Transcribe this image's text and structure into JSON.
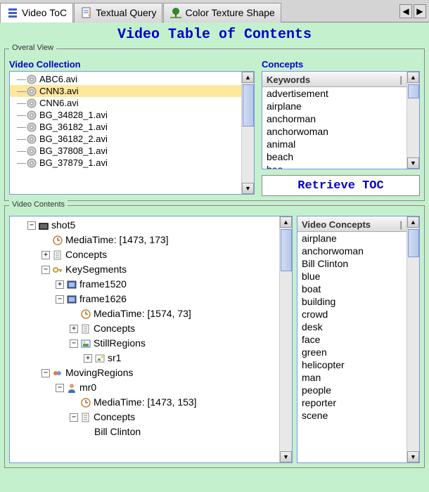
{
  "tabs": [
    {
      "label": "Video ToC",
      "icon": "bars"
    },
    {
      "label": "Textual Query",
      "icon": "note"
    },
    {
      "label": "Color Texture Shape",
      "icon": "tree"
    }
  ],
  "page_title": "Video Table of Contents",
  "overall_view": {
    "legend": "Overal View",
    "collection_label": "Video Collection",
    "concepts_label": "Concepts",
    "videos": [
      "ABC6.avi",
      "CNN3.avi",
      "CNN6.avi",
      "BG_34828_1.avi",
      "BG_36182_1.avi",
      "BG_36182_2.avi",
      "BG_37808_1.avi",
      "BG_37879_1.avi"
    ],
    "selected_video_index": 1,
    "keywords_header": "Keywords",
    "keywords": [
      "advertisement",
      "airplane",
      "anchorman",
      "anchorwoman",
      "animal",
      "beach",
      "bee"
    ],
    "retrieve_label": "Retrieve TOC"
  },
  "video_contents": {
    "legend": "Video Contents",
    "concepts_header": "Video Concepts",
    "concepts": [
      "airplane",
      "anchorwoman",
      "Bill Clinton",
      "blue",
      "boat",
      "building",
      "crowd",
      "desk",
      "face",
      "green",
      "helicopter",
      "man",
      "people",
      "reporter",
      "scene"
    ],
    "tree": [
      {
        "indent": 1,
        "expander": "-",
        "icon": "folder",
        "label": "shot5"
      },
      {
        "indent": 2,
        "expander": "",
        "icon": "clock",
        "label": "MediaTime: [1473, 173]"
      },
      {
        "indent": 2,
        "expander": "+",
        "icon": "doc",
        "label": "Concepts"
      },
      {
        "indent": 2,
        "expander": "-",
        "icon": "key",
        "label": "KeySegments"
      },
      {
        "indent": 3,
        "expander": "+",
        "icon": "frame",
        "label": "frame1520"
      },
      {
        "indent": 3,
        "expander": "-",
        "icon": "frame",
        "label": "frame1626"
      },
      {
        "indent": 4,
        "expander": "",
        "icon": "clock",
        "label": "MediaTime: [1574, 73]"
      },
      {
        "indent": 4,
        "expander": "+",
        "icon": "doc",
        "label": "Concepts"
      },
      {
        "indent": 4,
        "expander": "-",
        "icon": "region",
        "label": "StillRegions"
      },
      {
        "indent": 5,
        "expander": "+",
        "icon": "img",
        "label": "sr1"
      },
      {
        "indent": 2,
        "expander": "-",
        "icon": "moving",
        "label": "MovingRegions"
      },
      {
        "indent": 3,
        "expander": "-",
        "icon": "person",
        "label": "mr0"
      },
      {
        "indent": 4,
        "expander": "",
        "icon": "clock",
        "label": "MediaTime: [1473, 153]"
      },
      {
        "indent": 4,
        "expander": "-",
        "icon": "doc",
        "label": "Concepts"
      },
      {
        "indent": 5,
        "expander": "",
        "icon": "",
        "label": "Bill Clinton"
      }
    ]
  },
  "colors": {
    "bg": "#c5f0ce",
    "title": "#0000cc",
    "accent": "#0000cc",
    "selected": "#ffe79c",
    "border": "#7a96df"
  }
}
